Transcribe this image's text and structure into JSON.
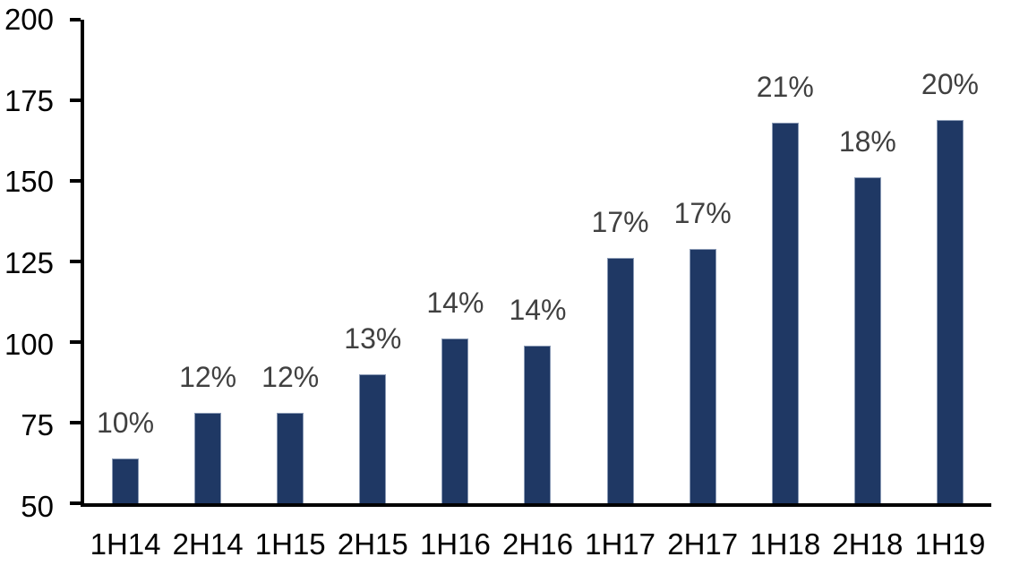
{
  "chart_data": {
    "type": "bar",
    "title": "",
    "xlabel": "",
    "ylabel": "",
    "categories": [
      "1H14",
      "2H14",
      "1H15",
      "2H15",
      "1H16",
      "2H16",
      "1H17",
      "2H17",
      "1H18",
      "2H18",
      "1H19"
    ],
    "values": [
      64,
      78,
      78,
      90,
      101,
      99,
      126,
      129,
      168,
      151,
      169
    ],
    "bar_labels": [
      "10%",
      "12%",
      "12%",
      "13%",
      "14%",
      "14%",
      "17%",
      "17%",
      "21%",
      "18%",
      "20%"
    ],
    "ylim": [
      50,
      200
    ],
    "yticks": [
      50,
      75,
      100,
      125,
      150,
      175,
      200
    ],
    "grid": false,
    "legend": false,
    "colors": {
      "bar_fill": "#1F3864",
      "bar_border": "#8A9AB5",
      "value_label": "#404040",
      "axis_line": "#000000",
      "tick_label": "#000000"
    }
  }
}
